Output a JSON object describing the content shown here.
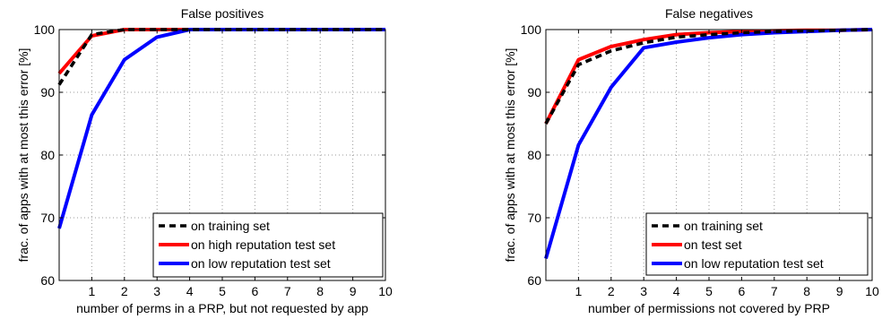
{
  "chart_data": [
    {
      "type": "line",
      "title": "False positives",
      "xlabel": "number of perms in a PRP, but not requested by app",
      "ylabel": "frac. of apps with at most this error [%]",
      "xlim": [
        0,
        10
      ],
      "ylim": [
        60,
        100
      ],
      "xticks": [
        1,
        2,
        3,
        4,
        5,
        6,
        7,
        8,
        9,
        10
      ],
      "yticks": [
        60,
        70,
        80,
        90,
        100
      ],
      "grid": true,
      "legend_position": "lower-right",
      "x": [
        0,
        1,
        2,
        3,
        4,
        5,
        6,
        7,
        8,
        9,
        10
      ],
      "series": [
        {
          "name": "on training set",
          "color": "#000000",
          "dash": "dashed",
          "values": [
            91.2,
            99.2,
            100,
            100,
            100,
            100,
            100,
            100,
            100,
            100,
            100
          ]
        },
        {
          "name": "on high reputation test set",
          "color": "#ff0000",
          "dash": "solid",
          "values": [
            93.0,
            99.0,
            100,
            100,
            100,
            100,
            100,
            100,
            100,
            100,
            100
          ]
        },
        {
          "name": "on low reputation test set",
          "color": "#0000ff",
          "dash": "solid",
          "values": [
            68.3,
            86.4,
            95.2,
            98.8,
            100,
            100,
            100,
            100,
            100,
            100,
            100
          ]
        }
      ]
    },
    {
      "type": "line",
      "title": "False negatives",
      "xlabel": "number of permissions not covered by PRP",
      "ylabel": "frac. of apps with at most this error [%]",
      "xlim": [
        0,
        10
      ],
      "ylim": [
        60,
        100
      ],
      "xticks": [
        1,
        2,
        3,
        4,
        5,
        6,
        7,
        8,
        9,
        10
      ],
      "yticks": [
        60,
        70,
        80,
        90,
        100
      ],
      "grid": true,
      "legend_position": "lower-right",
      "x": [
        0,
        1,
        2,
        3,
        4,
        5,
        6,
        7,
        8,
        9,
        10
      ],
      "series": [
        {
          "name": "on training set",
          "color": "#000000",
          "dash": "dashed",
          "values": [
            85.0,
            94.4,
            96.6,
            97.9,
            98.8,
            99.2,
            99.5,
            99.7,
            99.8,
            99.9,
            100
          ]
        },
        {
          "name": "on test set",
          "color": "#ff0000",
          "dash": "solid",
          "values": [
            85.0,
            95.2,
            97.3,
            98.4,
            99.2,
            99.5,
            99.7,
            99.8,
            99.9,
            99.9,
            100
          ]
        },
        {
          "name": "on low reputation test set",
          "color": "#0000ff",
          "dash": "solid",
          "values": [
            63.5,
            81.6,
            90.8,
            97.1,
            98.0,
            98.7,
            99.2,
            99.5,
            99.7,
            99.9,
            100
          ]
        }
      ]
    }
  ]
}
